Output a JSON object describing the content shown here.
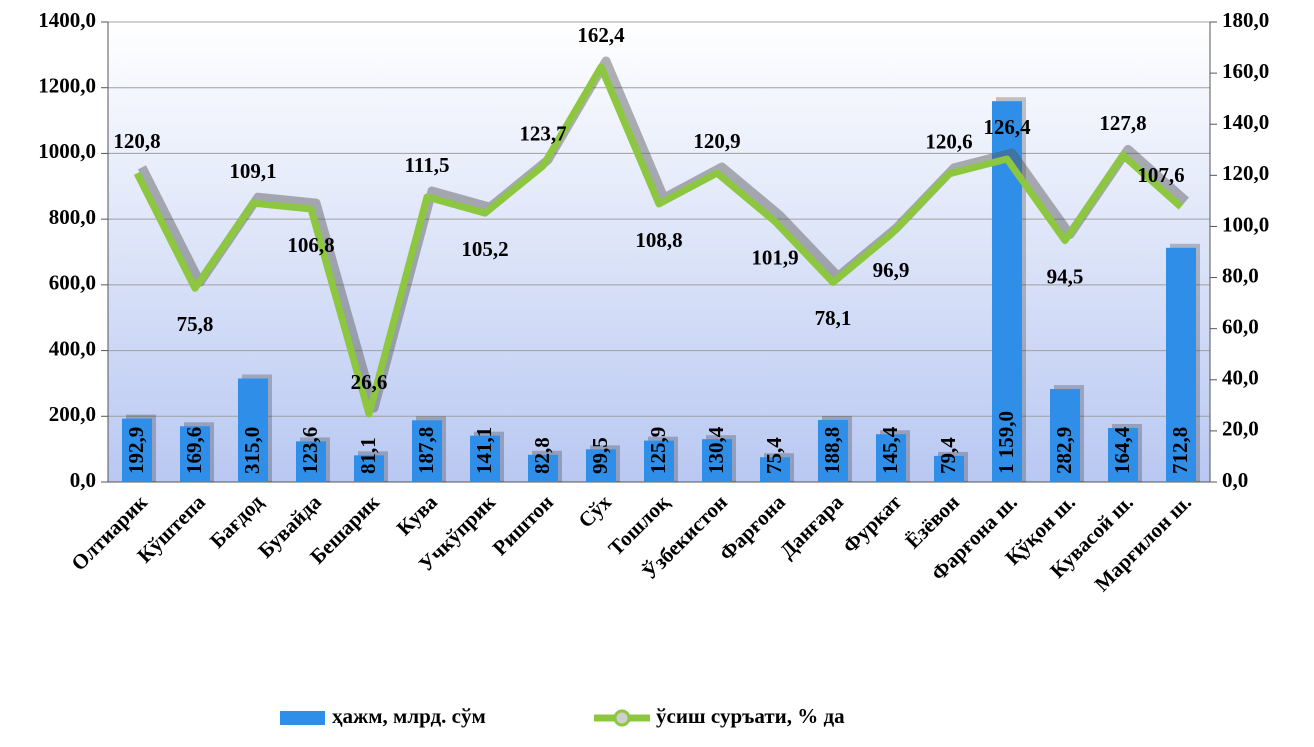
{
  "chart_data": {
    "type": "bar",
    "categories": [
      "Олтиарик",
      "Кўштепа",
      "Бағдод",
      "Бувайда",
      "Бешарик",
      "Кува",
      "Учкўприк",
      "Риштон",
      "Сўх",
      "Тошлоқ",
      "Ўзбекистон",
      "Фарғона",
      "Данғара",
      "Фуркат",
      "Ёзёвон",
      "Фарғона ш.",
      "Қўқон ш.",
      "Кувасой ш.",
      "Марғилон ш."
    ],
    "series": [
      {
        "name": "ҳажм, млрд. сўм",
        "type": "bar",
        "color": "#2f8fe8",
        "values": [
          192.9,
          169.6,
          315.0,
          123.6,
          81.1,
          187.8,
          141.1,
          82.8,
          99.5,
          125.9,
          130.4,
          75.4,
          188.8,
          145.4,
          79.4,
          1159.0,
          282.9,
          164.4,
          712.8
        ],
        "value_labels": [
          "192,9",
          "169,6",
          "315,0",
          "123,6",
          "81,1",
          "187,8",
          "141,1",
          "82,8",
          "99,5",
          "125,9",
          "130,4",
          "75,4",
          "188,8",
          "145,4",
          "79,4",
          "1 159,0",
          "282,9",
          "164,4",
          "712,8"
        ]
      },
      {
        "name": "ўсиш суръати, % да",
        "type": "line",
        "axis": "y2",
        "color": "#8dc63f",
        "values": [
          120.8,
          75.8,
          109.1,
          106.8,
          26.6,
          111.5,
          105.2,
          123.7,
          162.4,
          108.8,
          120.9,
          101.9,
          78.1,
          96.9,
          120.6,
          126.4,
          94.5,
          127.8,
          107.6
        ],
        "value_labels": [
          "120,8",
          "75,8",
          "109,1",
          "106,8",
          "26,6",
          "111,5",
          "105,2",
          "123,7",
          "162,4",
          "108,8",
          "120,9",
          "101,9",
          "78,1",
          "96,9",
          "120,6",
          "126,4",
          "94,5",
          "127,8",
          "107,6"
        ]
      }
    ],
    "ylim": [
      0,
      1400
    ],
    "yticks": [
      {
        "value": 0,
        "label": "0,0"
      },
      {
        "value": 200,
        "label": "200,0"
      },
      {
        "value": 400,
        "label": "400,0"
      },
      {
        "value": 600,
        "label": "600,0"
      },
      {
        "value": 800,
        "label": "800,0"
      },
      {
        "value": 1000,
        "label": "1000,0"
      },
      {
        "value": 1200,
        "label": "1200,0"
      },
      {
        "value": 1400,
        "label": "1400,0"
      }
    ],
    "y2lim": [
      0,
      180
    ],
    "y2ticks": [
      {
        "value": 0,
        "label": "0,0"
      },
      {
        "value": 20,
        "label": "20,0"
      },
      {
        "value": 40,
        "label": "40,0"
      },
      {
        "value": 60,
        "label": "60,0"
      },
      {
        "value": 80,
        "label": "80,0"
      },
      {
        "value": 100,
        "label": "100,0"
      },
      {
        "value": 120,
        "label": "120,0"
      },
      {
        "value": 140,
        "label": "140,0"
      },
      {
        "value": 160,
        "label": "160,0"
      },
      {
        "value": 180,
        "label": "180,0"
      }
    ],
    "grid": true,
    "legend": "bottom"
  }
}
